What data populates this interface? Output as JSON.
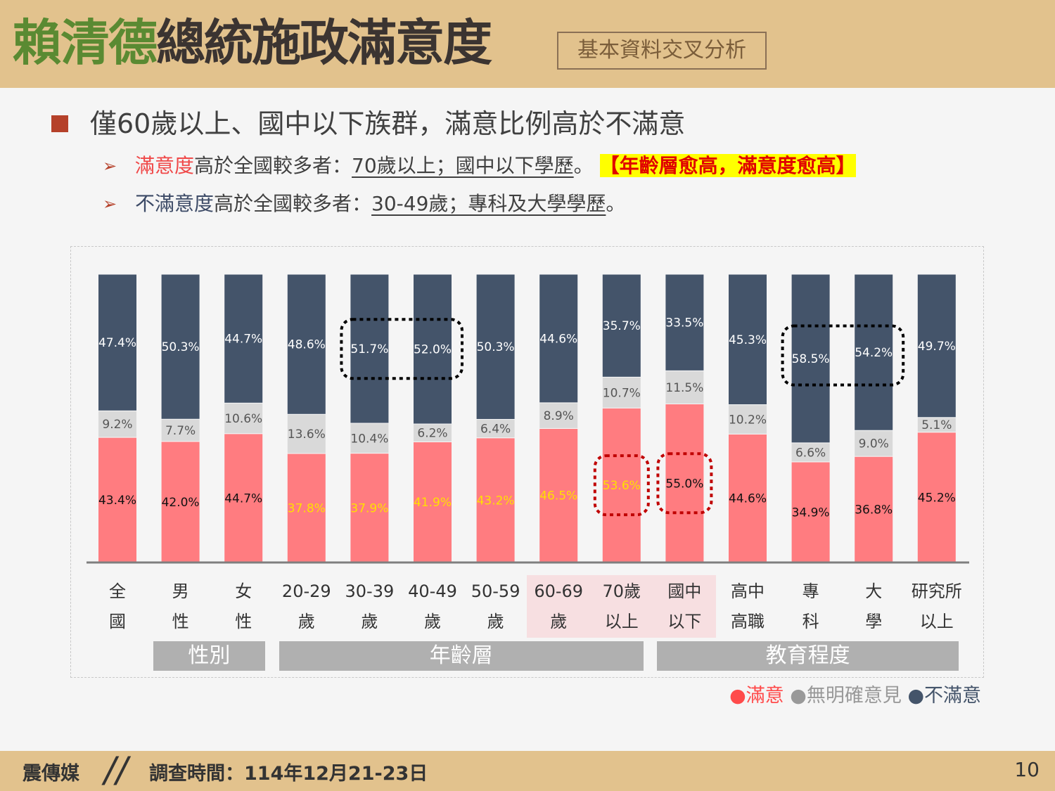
{
  "header": {
    "title_highlight": "賴清德",
    "title_rest": "總統施政滿意度",
    "subtitle": "基本資料交叉分析"
  },
  "headline": "僅60歲以上、國中以下族群，滿意比例高於不滿意",
  "points": [
    {
      "keyword": "滿意度",
      "text": "高於全國較多者：",
      "underlined": "70歲以上；國中以下學歷",
      "end": "。",
      "highlight": "【年齡層愈高，滿意度愈高】"
    },
    {
      "keyword": "不滿意度",
      "text": "高於全國較多者：",
      "underlined": "30-49歲；專科及大學學歷",
      "end": "。"
    }
  ],
  "chart_data": {
    "type": "bar",
    "stacked": true,
    "categories": [
      [
        "全",
        "國"
      ],
      [
        "男",
        "性"
      ],
      [
        "女",
        "性"
      ],
      [
        "20-29",
        "歲"
      ],
      [
        "30-39",
        "歲"
      ],
      [
        "40-49",
        "歲"
      ],
      [
        "50-59",
        "歲"
      ],
      [
        "60-69",
        "歲"
      ],
      [
        "70歲",
        "以上"
      ],
      [
        "國中",
        "以下"
      ],
      [
        "高中",
        "高職"
      ],
      [
        "專",
        "科"
      ],
      [
        "大",
        "學"
      ],
      [
        "研究所",
        "以上"
      ]
    ],
    "series": [
      {
        "name": "滿意",
        "color": "#ff7c80",
        "values": [
          43.4,
          42.0,
          44.7,
          37.8,
          37.9,
          41.9,
          43.2,
          46.5,
          53.6,
          55.0,
          44.6,
          34.9,
          36.8,
          45.2
        ]
      },
      {
        "name": "無明確意見",
        "color": "#d9d9d9",
        "values": [
          9.2,
          7.7,
          10.6,
          13.6,
          10.4,
          6.2,
          6.4,
          8.9,
          10.7,
          11.5,
          10.2,
          6.6,
          9.0,
          5.1
        ]
      },
      {
        "name": "不滿意",
        "color": "#44546a",
        "values": [
          47.4,
          50.3,
          44.7,
          48.6,
          51.7,
          52.0,
          50.3,
          44.6,
          35.7,
          33.5,
          45.3,
          58.5,
          54.2,
          49.7
        ]
      }
    ],
    "satisfied_label_colors": [
      "#111",
      "#111",
      "#111",
      "#ffe000",
      "#ffe000",
      "#ffe000",
      "#ffe000",
      "#ffe000",
      "#ffe000",
      "#111",
      "#111",
      "#111",
      "#111",
      "#111"
    ],
    "groups": [
      {
        "label": "性別",
        "from": 1,
        "to": 2
      },
      {
        "label": "年齡層",
        "from": 3,
        "to": 8
      },
      {
        "label": "教育程度",
        "from": 9,
        "to": 13
      }
    ],
    "highlighted_categories": [
      7,
      8,
      9
    ],
    "boxes": [
      {
        "series": 2,
        "from": 4,
        "to": 5,
        "color": "#000000"
      },
      {
        "series": 2,
        "from": 11,
        "to": 12,
        "color": "#000000"
      },
      {
        "series": 0,
        "from": 8,
        "to": 8,
        "color": "#c00000"
      },
      {
        "series": 0,
        "from": 9,
        "to": 9,
        "color": "#c00000"
      }
    ],
    "ylim": [
      0,
      100
    ],
    "legend_position": "bottom-right"
  },
  "legend": [
    {
      "label": "滿意",
      "color": "#ff4b4b"
    },
    {
      "label": "無明確意見",
      "color": "#999999"
    },
    {
      "label": "不滿意",
      "color": "#44546a"
    }
  ],
  "footer": {
    "org": "震傳媒",
    "slash": "//",
    "date": "調查時間：114年12月21-23日",
    "page": "10"
  }
}
